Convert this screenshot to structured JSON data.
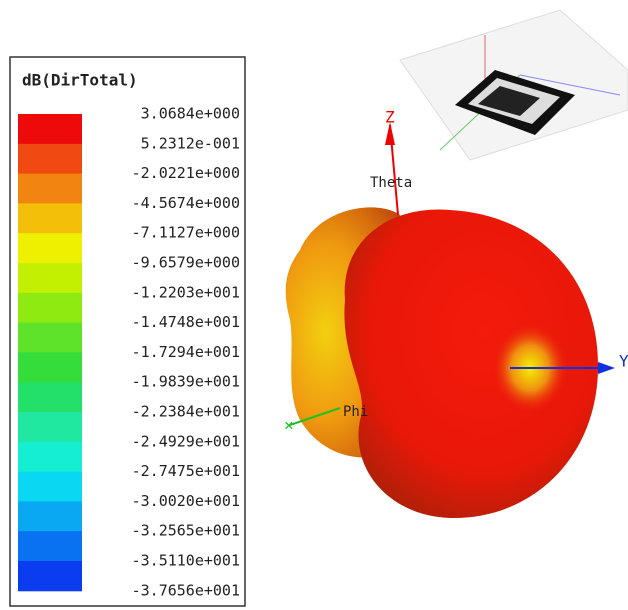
{
  "legend": {
    "title": "dB(DirTotal)",
    "labels": [
      "3.0684e+000",
      "5.2312e-001",
      "-2.0221e+000",
      "-4.5674e+000",
      "-7.1127e+000",
      "-9.6579e+000",
      "-1.2203e+001",
      "-1.4748e+001",
      "-1.7294e+001",
      "-1.9839e+001",
      "-2.2384e+001",
      "-2.4929e+001",
      "-2.7475e+001",
      "-3.0020e+001",
      "-3.2565e+001",
      "-3.5110e+001",
      "-3.7656e+001"
    ],
    "colors": [
      "#ee0a0a",
      "#f04a12",
      "#f2850f",
      "#f4bf08",
      "#eef000",
      "#c2f000",
      "#8eea10",
      "#5fe22a",
      "#34dd3a",
      "#22e06a",
      "#20e8a0",
      "#16eed2",
      "#0ad8f2",
      "#08a8f2",
      "#0872f0",
      "#0a3cf0"
    ]
  },
  "axes": {
    "z": "Z",
    "theta": "Theta",
    "phi": "Phi",
    "y": "Y"
  }
}
